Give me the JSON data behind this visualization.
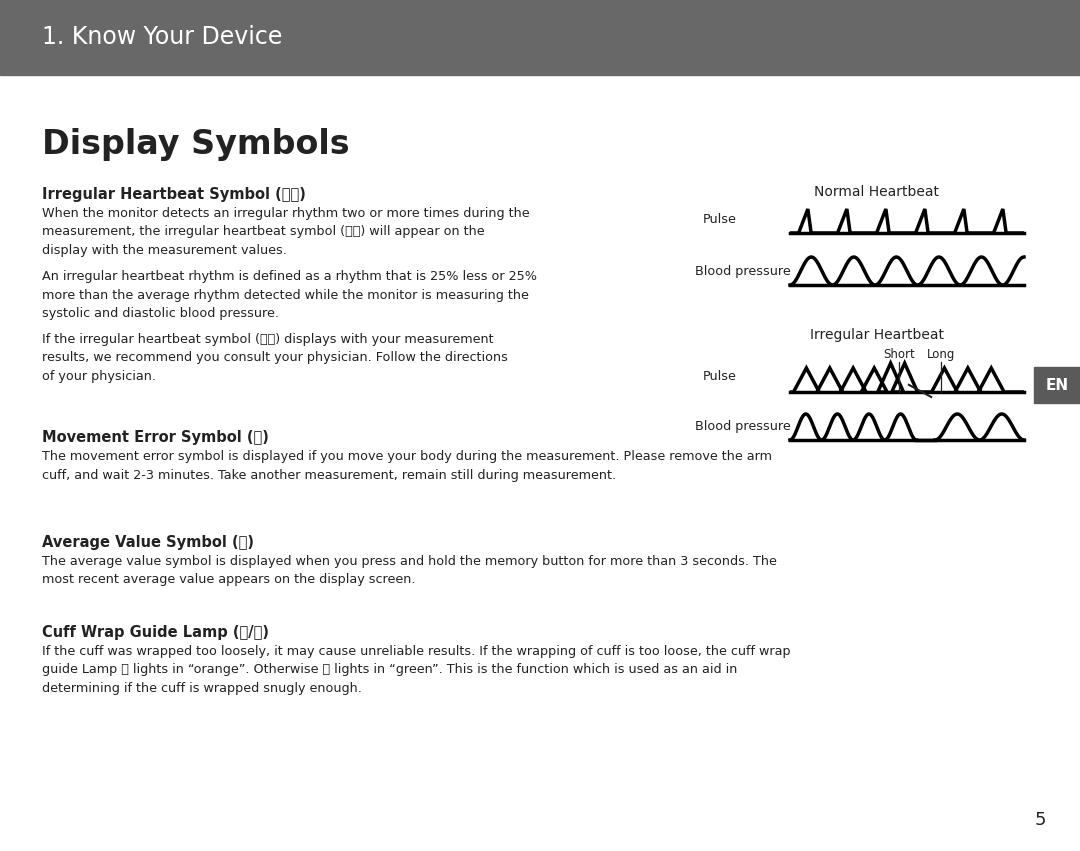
{
  "bg_color": "#ffffff",
  "header_bg": "#686868",
  "header_text": "1. Know Your Device",
  "header_text_color": "#ffffff",
  "header_fontsize": 17,
  "en_badge_color": "#5a5a5a",
  "en_badge_text_color": "#ffffff",
  "title": "Display Symbols",
  "title_fontsize": 24,
  "body_color": "#222222",
  "body_fontsize": 9.2,
  "bold_fontsize": 10.5,
  "page_number": "5",
  "diagram_label_normal": "Normal Heartbeat",
  "diagram_label_irregular": "Irregular Heartbeat",
  "diagram_label_pulse": "Pulse",
  "diagram_label_bp": "Blood pressure",
  "diagram_label_short": "Short",
  "diagram_label_long": "Long"
}
